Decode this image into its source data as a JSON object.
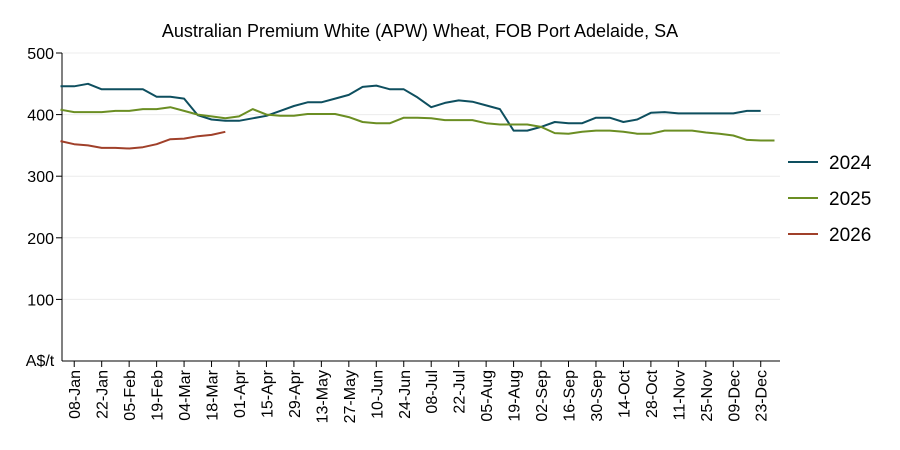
{
  "chart_data": {
    "type": "line",
    "title": "Australian Premium White (APW) Wheat, FOB Port Adelaide, SA",
    "ylabel": "A$/t",
    "xlabel": "",
    "ylim": [
      0,
      500
    ],
    "yticks": [
      100,
      200,
      300,
      400,
      500
    ],
    "grid": true,
    "legend_position": "right",
    "x_tick_labels": [
      "08-Jan",
      "22-Jan",
      "05-Feb",
      "19-Feb",
      "04-Mar",
      "18-Mar",
      "01-Apr",
      "15-Apr",
      "29-Apr",
      "13-May",
      "27-May",
      "10-Jun",
      "24-Jun",
      "08-Jul",
      "22-Jul",
      "05-Aug",
      "19-Aug",
      "02-Sep",
      "16-Sep",
      "30-Sep",
      "14-Oct",
      "28-Oct",
      "11-Nov",
      "25-Nov",
      "09-Dec",
      "23-Dec"
    ],
    "x_units": "week index (0 = 01-Jan, 1 = 08-Jan, ...)",
    "xlim": [
      0,
      52
    ],
    "series": [
      {
        "name": "2024",
        "color": "#0e4f5f",
        "points": [
          [
            0,
            446
          ],
          [
            1,
            446
          ],
          [
            2,
            450
          ],
          [
            3,
            441
          ],
          [
            4,
            441
          ],
          [
            5,
            441
          ],
          [
            6,
            441
          ],
          [
            7,
            429
          ],
          [
            8,
            429
          ],
          [
            9,
            426
          ],
          [
            10,
            399
          ],
          [
            11,
            392
          ],
          [
            12,
            390
          ],
          [
            13,
            390
          ],
          [
            14,
            394
          ],
          [
            15,
            398
          ],
          [
            16,
            406
          ],
          [
            17,
            414
          ],
          [
            18,
            420
          ],
          [
            19,
            420
          ],
          [
            20,
            426
          ],
          [
            21,
            432
          ],
          [
            22,
            445
          ],
          [
            23,
            447
          ],
          [
            24,
            441
          ],
          [
            25,
            441
          ],
          [
            26,
            428
          ],
          [
            27,
            412
          ],
          [
            28,
            419
          ],
          [
            29,
            423
          ],
          [
            30,
            421
          ],
          [
            31,
            415
          ],
          [
            32,
            409
          ],
          [
            33,
            374
          ],
          [
            34,
            374
          ],
          [
            35,
            380
          ],
          [
            36,
            388
          ],
          [
            37,
            386
          ],
          [
            38,
            386
          ],
          [
            39,
            395
          ],
          [
            40,
            395
          ],
          [
            41,
            388
          ],
          [
            42,
            392
          ],
          [
            43,
            403
          ],
          [
            44,
            404
          ],
          [
            45,
            402
          ],
          [
            46,
            402
          ],
          [
            47,
            402
          ],
          [
            48,
            402
          ],
          [
            49,
            402
          ],
          [
            50,
            406
          ],
          [
            51,
            406
          ]
        ]
      },
      {
        "name": "2025",
        "color": "#6b8e23",
        "points": [
          [
            0,
            408
          ],
          [
            1,
            404
          ],
          [
            2,
            404
          ],
          [
            3,
            404
          ],
          [
            4,
            406
          ],
          [
            5,
            406
          ],
          [
            6,
            409
          ],
          [
            7,
            409
          ],
          [
            8,
            412
          ],
          [
            9,
            406
          ],
          [
            10,
            400
          ],
          [
            11,
            397
          ],
          [
            12,
            394
          ],
          [
            13,
            397
          ],
          [
            14,
            409
          ],
          [
            15,
            400
          ],
          [
            16,
            398
          ],
          [
            17,
            398
          ],
          [
            18,
            401
          ],
          [
            19,
            401
          ],
          [
            20,
            401
          ],
          [
            21,
            396
          ],
          [
            22,
            388
          ],
          [
            23,
            386
          ],
          [
            24,
            386
          ],
          [
            25,
            395
          ],
          [
            26,
            395
          ],
          [
            27,
            394
          ],
          [
            28,
            391
          ],
          [
            29,
            391
          ],
          [
            30,
            391
          ],
          [
            31,
            386
          ],
          [
            32,
            384
          ],
          [
            33,
            384
          ],
          [
            34,
            384
          ],
          [
            35,
            380
          ],
          [
            36,
            370
          ],
          [
            37,
            369
          ],
          [
            38,
            372
          ],
          [
            39,
            374
          ],
          [
            40,
            374
          ],
          [
            41,
            372
          ],
          [
            42,
            369
          ],
          [
            43,
            369
          ],
          [
            44,
            374
          ],
          [
            45,
            374
          ],
          [
            46,
            374
          ],
          [
            47,
            371
          ],
          [
            48,
            369
          ],
          [
            49,
            366
          ],
          [
            50,
            359
          ],
          [
            51,
            358
          ],
          [
            52,
            358
          ]
        ]
      },
      {
        "name": "2026",
        "color": "#a0402a",
        "points": [
          [
            0,
            357
          ],
          [
            1,
            352
          ],
          [
            2,
            350
          ],
          [
            3,
            346
          ],
          [
            4,
            346
          ],
          [
            5,
            345
          ],
          [
            6,
            347
          ],
          [
            7,
            352
          ],
          [
            8,
            360
          ],
          [
            9,
            361
          ],
          [
            10,
            365
          ],
          [
            11,
            367
          ],
          [
            12,
            372
          ]
        ]
      }
    ]
  }
}
